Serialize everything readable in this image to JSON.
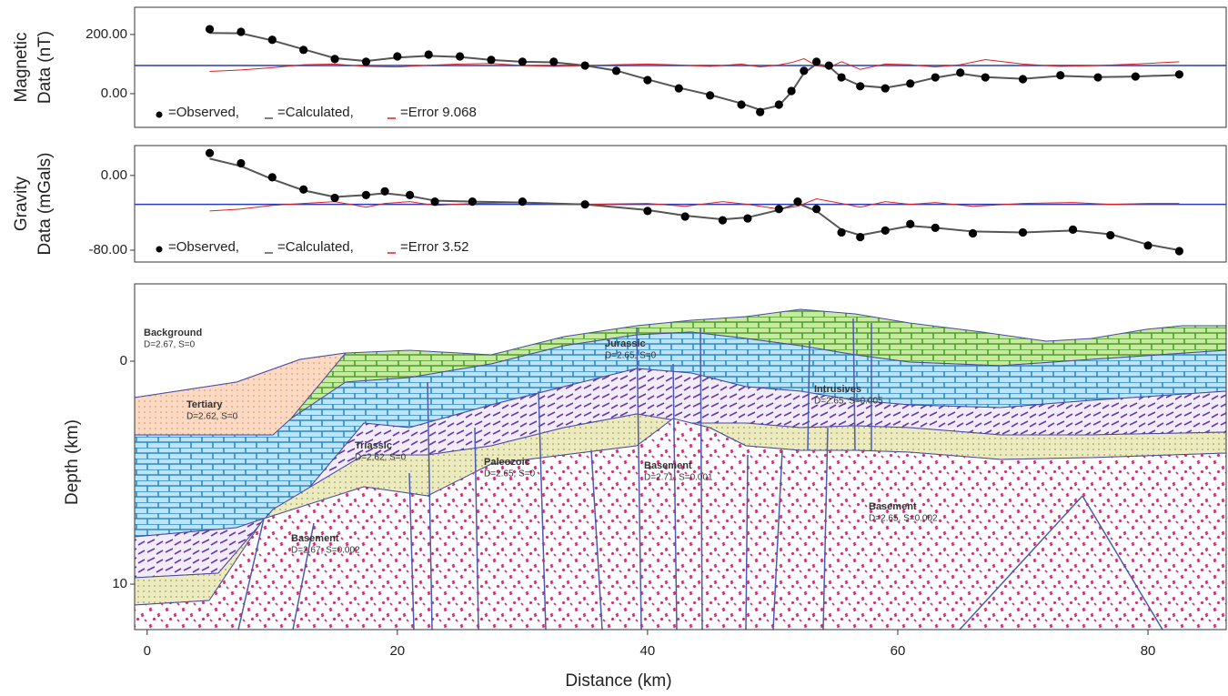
{
  "chart_data": [
    {
      "type": "line",
      "ylabel_lines": [
        "Magnetic",
        "Data (nT)"
      ],
      "xlim": [
        -1,
        86.25
      ],
      "ylim": [
        -114,
        292
      ],
      "yticks": [
        {
          "value": 0,
          "label": "0.00"
        },
        {
          "value": 200,
          "label": "200.00"
        }
      ],
      "reference_line": 95,
      "reference_color": "#2a3cb8",
      "x": [
        5,
        7.5,
        10,
        12.5,
        15,
        17.5,
        20,
        22.5,
        25,
        27.5,
        30,
        32.5,
        35,
        37.5,
        40,
        42.5,
        45,
        47.5,
        49,
        50.5,
        51.5,
        52.5,
        53.5,
        54.5,
        55.5,
        57,
        59,
        61,
        63,
        65,
        67,
        70,
        73,
        76,
        79,
        82.5
      ],
      "series": [
        {
          "name": "=Observed,",
          "color": "#000000",
          "style": "points",
          "values": [
            218,
            209,
            182,
            148,
            117,
            108,
            126,
            132,
            126,
            114,
            108,
            108,
            95,
            77,
            46,
            18,
            -6,
            -37,
            -62,
            -37,
            9,
            77,
            108,
            95,
            55,
            25,
            18,
            34,
            55,
            71,
            55,
            49,
            62,
            55,
            58,
            65
          ]
        },
        {
          "name": "=Calculated,",
          "color": "#555555",
          "style": "line",
          "values": [
            205,
            204,
            180,
            150,
            120,
            110,
            122,
            128,
            124,
            114,
            108,
            106,
            95,
            78,
            48,
            20,
            -4,
            -33,
            -55,
            -40,
            5,
            70,
            100,
            92,
            55,
            27,
            20,
            34,
            54,
            68,
            56,
            50,
            60,
            56,
            58,
            63
          ]
        },
        {
          "name": "=Error 9.068",
          "color": "#e02020",
          "style": "line",
          "values": [
            75,
            80,
            88,
            98,
            100,
            92,
            90,
            96,
            100,
            102,
            95,
            92,
            95,
            98,
            100,
            97,
            92,
            100,
            90,
            97,
            105,
            118,
            95,
            88,
            108,
            82,
            100,
            98,
            90,
            98,
            115,
            100,
            92,
            95,
            100,
            108
          ]
        }
      ]
    },
    {
      "type": "line",
      "ylabel_lines": [
        "Gravity",
        "Data (mGals)"
      ],
      "xlim": [
        -1,
        86.25
      ],
      "ylim": [
        -92.7,
        32
      ],
      "yticks": [
        {
          "value": -80,
          "label": "-80.00"
        },
        {
          "value": 0,
          "label": "0.00"
        }
      ],
      "reference_line": -31,
      "reference_color": "#2a3cb8",
      "x": [
        5,
        7.5,
        10,
        12.5,
        15,
        17.5,
        19,
        21,
        23,
        26,
        30,
        35,
        40,
        43,
        46,
        48,
        50.5,
        52,
        53.5,
        55.5,
        57,
        59,
        61,
        63,
        66,
        70,
        74,
        77,
        80,
        82.5
      ],
      "series": [
        {
          "name": "=Observed,",
          "color": "#000000",
          "style": "points",
          "values": [
            24,
            13,
            -2,
            -15,
            -24,
            -21,
            -17,
            -21,
            -28,
            -28,
            -28,
            -31,
            -38,
            -44,
            -48,
            -46,
            -36,
            -28,
            -36,
            -61,
            -66,
            -59,
            -52,
            -56,
            -62,
            -61,
            -58,
            -64,
            -75,
            -81
          ]
        },
        {
          "name": "=Calculated,",
          "color": "#555555",
          "style": "line",
          "values": [
            18,
            10,
            -4,
            -16,
            -23,
            -21,
            -19,
            -22,
            -27,
            -28,
            -29,
            -31,
            -37,
            -43,
            -47,
            -45,
            -37,
            -30,
            -38,
            -58,
            -64,
            -59,
            -54,
            -56,
            -60,
            -61,
            -59,
            -63,
            -74,
            -80
          ]
        },
        {
          "name": "=Error 3.52",
          "color": "#e02020",
          "style": "line",
          "values": [
            -38,
            -36,
            -32,
            -30,
            -28,
            -34,
            -30,
            -28,
            -32,
            -30,
            -29,
            -31,
            -30,
            -33,
            -28,
            -31,
            -36,
            -33,
            -25,
            -30,
            -34,
            -28,
            -31,
            -29,
            -33,
            -30,
            -29,
            -31,
            -30,
            -30
          ]
        }
      ]
    },
    {
      "type": "cross-section",
      "xlabel": "Distance (km)",
      "ylabel": "Depth (km)",
      "xlim": [
        -1,
        86.25
      ],
      "ylim": [
        -3.47,
        12.04
      ],
      "inverted": true,
      "xticks": [
        0,
        20,
        40,
        60,
        80
      ],
      "yticks": [
        0,
        10
      ],
      "units": [
        {
          "name": "Background",
          "label": "D=2.67, S=0"
        },
        {
          "name": "Tertiary",
          "label": "D=2.62, S=0"
        },
        {
          "name": "Triassic",
          "label": "D=2.62, S=0"
        },
        {
          "name": "Jurassic",
          "label": "D=2.65, S=0"
        },
        {
          "name": "Paleozoic",
          "label": "D=2.65, S=0"
        },
        {
          "name": "Basement",
          "label": "D=2.71, S=0.001"
        },
        {
          "name": "Intrusives",
          "label": "D=2.65, S=0.005"
        },
        {
          "name": "Basement",
          "label": "D=2.67, S=0.002"
        },
        {
          "name": "Basement",
          "label": "D=2.65, S=0.002"
        }
      ]
    }
  ]
}
